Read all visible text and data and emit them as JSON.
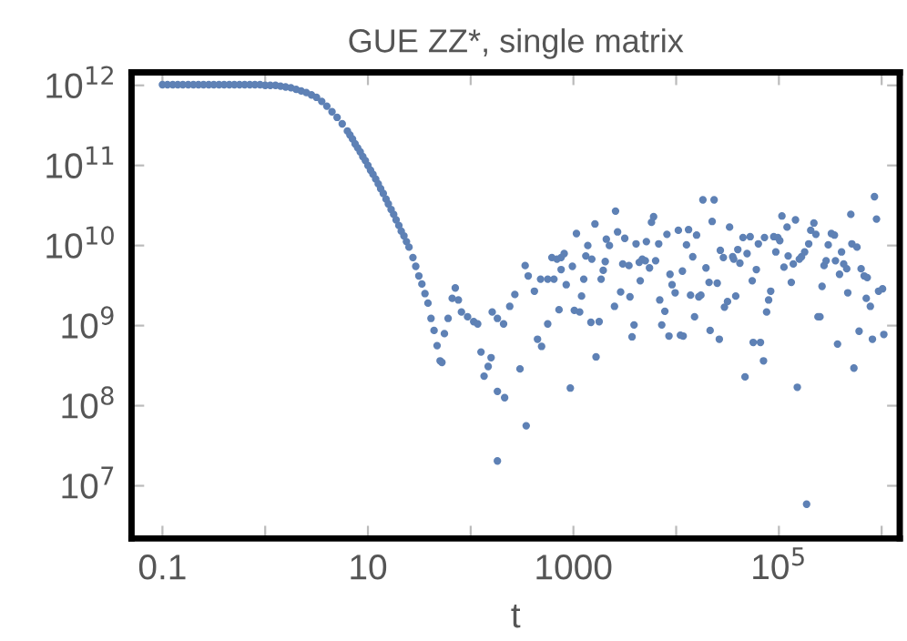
{
  "chart_data": {
    "type": "scatter",
    "title": "GUE ZZ*, single matrix",
    "xlabel": "t",
    "log": "xy",
    "grid": false,
    "marker": "circle",
    "xlim": [
      0.05,
      1500000.0
    ],
    "ylim": [
      2200000.0,
      1450000000000.0
    ],
    "xticks": [
      0.1,
      {
        "value": 1,
        "label": null
      },
      10,
      {
        "value": 100,
        "label": null
      },
      1000,
      {
        "value": 10000,
        "label": null
      },
      {
        "value": 100000,
        "label": "10$^{5}$"
      },
      {
        "value": 1000000,
        "label": null
      }
    ],
    "yticks": [
      {
        "value": 10000000.0,
        "label": "10$^{7}$"
      },
      {
        "value": 100000000.0,
        "label": "10$^{8}$"
      },
      {
        "value": 1000000000.0,
        "label": "10$^{9}$"
      },
      {
        "value": 10000000000.0,
        "label": "10$^{10}$"
      },
      {
        "value": 100000000000.0,
        "label": "10$^{11}$"
      },
      {
        "value": 1000000000000.0,
        "label": "10$^{12}$"
      }
    ],
    "series": [
      {
        "color": "#5e81b5",
        "x": [
          0.1,
          0.112,
          0.126,
          0.141,
          0.158,
          0.178,
          0.2,
          0.224,
          0.251,
          0.282,
          0.316,
          0.355,
          0.398,
          0.447,
          0.501,
          0.562,
          0.631,
          0.708,
          0.794,
          0.891,
          1.0,
          1.12,
          1.26,
          1.41,
          1.58,
          1.78,
          2.0,
          2.24,
          2.51,
          2.82,
          3.16,
          3.55,
          3.98,
          4.47,
          5.01,
          5.62,
          6.31,
          6.68,
          7.08,
          7.5,
          7.94,
          8.41,
          8.91,
          9.44,
          10,
          10.6,
          11.2,
          11.9,
          12.6,
          13.3,
          14.1,
          15.0,
          15.8,
          16.8,
          17.8,
          18.8,
          20.0,
          21.1,
          22.4,
          23.7,
          25.1,
          27.4,
          29.2,
          31.3,
          33.5,
          35.9,
          38.4,
          41.1,
          44.0,
          47.1,
          50.4,
          52.5,
          55.5,
          60.3,
          66.1,
          70.8,
          75.9,
          81.3,
          93.3,
          107,
          117,
          126,
          135,
          148,
          158,
          162,
          182,
          209,
          182,
          214,
          240,
          269,
          302,
          339,
          363,
          417,
          447,
          490,
          479,
          562,
          617,
          759,
          182,
          347,
          692,
          759,
          813,
          851,
          724,
          646,
          562,
          933,
          977,
          1070,
          1020,
          1150,
          1200,
          1260,
          1320,
          1380,
          1480,
          1510,
          1620,
          1660,
          1780,
          1860,
          1950,
          2040,
          2090,
          2240,
          2510,
          2570,
          2690,
          2880,
          3020,
          3160,
          3470,
          3550,
          3720,
          3890,
          4070,
          4370,
          4470,
          4680,
          5010,
          5130,
          5500,
          5750,
          6030,
          6310,
          6760,
          6920,
          7240,
          7760,
          8130,
          8510,
          8710,
          9120,
          9770,
          10500,
          11000,
          11500,
          11700,
          12600,
          13200,
          13800,
          14500,
          15100,
          15800,
          16600,
          17400,
          18200,
          19500,
          20900,
          21400,
          22400,
          23400,
          25100,
          26300,
          26900,
          28800,
          29500,
          31600,
          33100,
          35500,
          36300,
          38000,
          39800,
          41700,
          44700,
          46800,
          49000,
          52500,
          55000,
          56200,
          60300,
          63100,
          66100,
          70800,
          72400,
          75900,
          79400,
          83200,
          89100,
          93300,
          97700,
          102000,
          107000,
          112000,
          120000,
          123000,
          132000,
          138000,
          145000,
          151000,
          158000,
          166000,
          178000,
          186000,
          195000,
          204000,
          219000,
          229000,
          240000,
          251000,
          263000,
          275000,
          288000,
          302000,
          324000,
          347000,
          355000,
          372000,
          389000,
          407000,
          427000,
          457000,
          468000,
          501000,
          513000,
          537000,
          575000,
          603000,
          631000,
          676000,
          724000,
          708000,
          776000,
          813000,
          851000,
          891000,
          933000,
          1020000,
          1050000
        ],
        "values": [
          1020000000000.0,
          1020000000000.0,
          1020000000000.0,
          1020000000000.0,
          1020000000000.0,
          1020000000000.0,
          1020000000000.0,
          1020000000000.0,
          1020000000000.0,
          1020000000000.0,
          1020000000000.0,
          1020000000000.0,
          1020000000000.0,
          1020000000000.0,
          1020000000000.0,
          1020000000000.0,
          1020000000000.0,
          1020000000000.0,
          1020000000000.0,
          1020000000000.0,
          1000000000000.0,
          1000000000000.0,
          1000000000000.0,
          977000000000.0,
          955000000000.0,
          933000000000.0,
          891000000000.0,
          851000000000.0,
          813000000000.0,
          759000000000.0,
          708000000000.0,
          631000000000.0,
          550000000000.0,
          468000000000.0,
          398000000000.0,
          331000000000.0,
          269000000000.0,
          240000000000.0,
          214000000000.0,
          186000000000.0,
          166000000000.0,
          148000000000.0,
          129000000000.0,
          115000000000.0,
          100000000000.0,
          87100000000.0,
          77600000000.0,
          67600000000.0,
          58900000000.0,
          51300000000.0,
          44700000000.0,
          38000000000.0,
          33100000000.0,
          28200000000.0,
          24500000000.0,
          20900000000.0,
          17800000000.0,
          15100000000.0,
          13200000000.0,
          11200000000.0,
          9550000000.0,
          7080000000.0,
          5500000000.0,
          4170000000.0,
          3310000000.0,
          2510000000.0,
          1910000000.0,
          1230000000.0,
          871000000.0,
          562000000.0,
          363000000.0,
          347000000.0,
          794000000.0,
          1230000000.0,
          2190000000.0,
          2950000000.0,
          2090000000.0,
          1480000000.0,
          1290000000.0,
          1120000000.0,
          1050000000.0,
          468000000.0,
          234000000.0,
          309000000.0,
          398000000.0,
          1480000000.0,
          1230000000.0,
          1050000000.0,
          151000000.0,
          126000000.0,
          1740000000.0,
          2450000000.0,
          288000000.0,
          5620000000.0,
          4170000000.0,
          2690000000.0,
          676000000.0,
          550000000.0,
          3800000000.0,
          1050000000.0,
          7080000000.0,
          7080000000.0,
          20400000.0,
          56200000.0,
          6760000000.0,
          5010000000.0,
          7940000000.0,
          3240000000.0,
          1580000000.0,
          3800000000.0,
          3800000000.0,
          166000000.0,
          5500000000.0,
          14100000000.0,
          1550000000.0,
          1480000000.0,
          2340000000.0,
          3800000000.0,
          7410000000.0,
          10000000000.0,
          1100000000.0,
          6760000000.0,
          18600000000.0,
          407000000.0,
          1120000000.0,
          3800000000.0,
          4900000000.0,
          6310000000.0,
          12000000000.0,
          10000000000.0,
          1740000000.0,
          26900000000.0,
          14800000000.0,
          2630000000.0,
          5890000000.0,
          12300000000.0,
          5620000000.0,
          2290000000.0,
          724000000.0,
          1020000000.0,
          10500000000.0,
          6170000000.0,
          3630000000.0,
          6760000000.0,
          6460000000.0,
          11200000000.0,
          5250000000.0,
          19500000000.0,
          22900000000.0,
          6460000000.0,
          10500000000.0,
          2090000000.0,
          1020000000.0,
          1510000000.0,
          13800000000.0,
          741000000.0,
          4370000000.0,
          3240000000.0,
          2570000000.0,
          15500000000.0,
          759000000.0,
          4790000000.0,
          741000000.0,
          10200000000.0,
          15800000000.0,
          2400000000.0,
          7240000000.0,
          1290000000.0,
          13500000000.0,
          2290000000.0,
          2400000000.0,
          37200000000.0,
          5250000000.0,
          3470000000.0,
          871000000.0,
          20000000000.0,
          37200000000.0,
          3390000000.0,
          676000000.0,
          8710000000.0,
          7080000000.0,
          1700000000.0,
          2000000000.0,
          17000000000.0,
          7240000000.0,
          6760000000.0,
          2340000000.0,
          8910000000.0,
          6030000000.0,
          12600000000.0,
          229000000.0,
          7940000000.0,
          12900000000.0,
          3630000000.0,
          617000000.0,
          5010000000.0,
          10500000000.0,
          617000000.0,
          363000000.0,
          12600000000.0,
          1480000000.0,
          2090000000.0,
          2690000000.0,
          12900000000.0,
          8320000000.0,
          12600000000.0,
          11500000000.0,
          23400000000.0,
          5370000000.0,
          17000000000.0,
          7410000000.0,
          3470000000.0,
          5890000000.0,
          20900000000.0,
          170000000.0,
          6760000000.0,
          7240000000.0,
          8320000000.0,
          5890000.0,
          10500000000.0,
          15500000000.0,
          19100000000.0,
          13800000000.0,
          1290000000.0,
          1290000000.0,
          3090000000.0,
          5620000000.0,
          6460000000.0,
          10200000000.0,
          14100000000.0,
          13500000000.0,
          6460000000.0,
          589000000.0,
          4370000000.0,
          8320000000.0,
          5890000000.0,
          5130000000.0,
          2570000000.0,
          24500000000.0,
          10500000000.0,
          295000000.0,
          9550000000.0,
          851000000.0,
          5130000000.0,
          4170000000.0,
          3980000000.0,
          2190000000.0,
          1740000000.0,
          676000000.0,
          40700000000.0,
          21400000000.0,
          2690000000.0,
          2880000000.0,
          776000000.0
        ]
      }
    ]
  }
}
